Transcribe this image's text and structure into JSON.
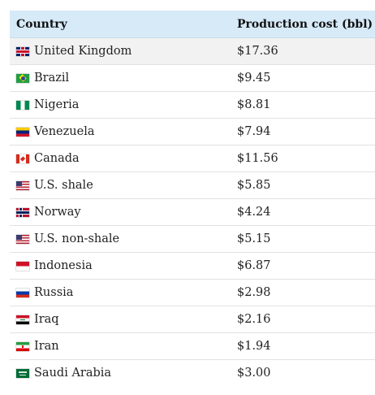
{
  "table": {
    "headers": {
      "country": "Country",
      "cost": "Production cost (bbl)"
    },
    "rows": [
      {
        "flag_icon": "flag-uk-icon",
        "country": "United Kingdom",
        "cost": "$17.36"
      },
      {
        "flag_icon": "flag-brazil-icon",
        "country": "Brazil",
        "cost": "$9.45"
      },
      {
        "flag_icon": "flag-nigeria-icon",
        "country": "Nigeria",
        "cost": "$8.81"
      },
      {
        "flag_icon": "flag-venezuela-icon",
        "country": "Venezuela",
        "cost": "$7.94"
      },
      {
        "flag_icon": "flag-canada-icon",
        "country": "Canada",
        "cost": "$11.56"
      },
      {
        "flag_icon": "flag-us-icon",
        "country": "U.S. shale",
        "cost": "$5.85"
      },
      {
        "flag_icon": "flag-norway-icon",
        "country": "Norway",
        "cost": "$4.24"
      },
      {
        "flag_icon": "flag-us-icon",
        "country": "U.S. non-shale",
        "cost": "$5.15"
      },
      {
        "flag_icon": "flag-indonesia-icon",
        "country": "Indonesia",
        "cost": "$6.87"
      },
      {
        "flag_icon": "flag-russia-icon",
        "country": "Russia",
        "cost": "$2.98"
      },
      {
        "flag_icon": "flag-iraq-icon",
        "country": "Iraq",
        "cost": "$2.16"
      },
      {
        "flag_icon": "flag-iran-icon",
        "country": "Iran",
        "cost": "$1.94"
      },
      {
        "flag_icon": "flag-saudi-arabia-icon",
        "country": "Saudi Arabia",
        "cost": "$3.00"
      }
    ]
  },
  "colors": {
    "header_background": "#d6eaf8",
    "alternate_row_background": "#f2f2f2",
    "row_border": "#e2e2e2"
  }
}
